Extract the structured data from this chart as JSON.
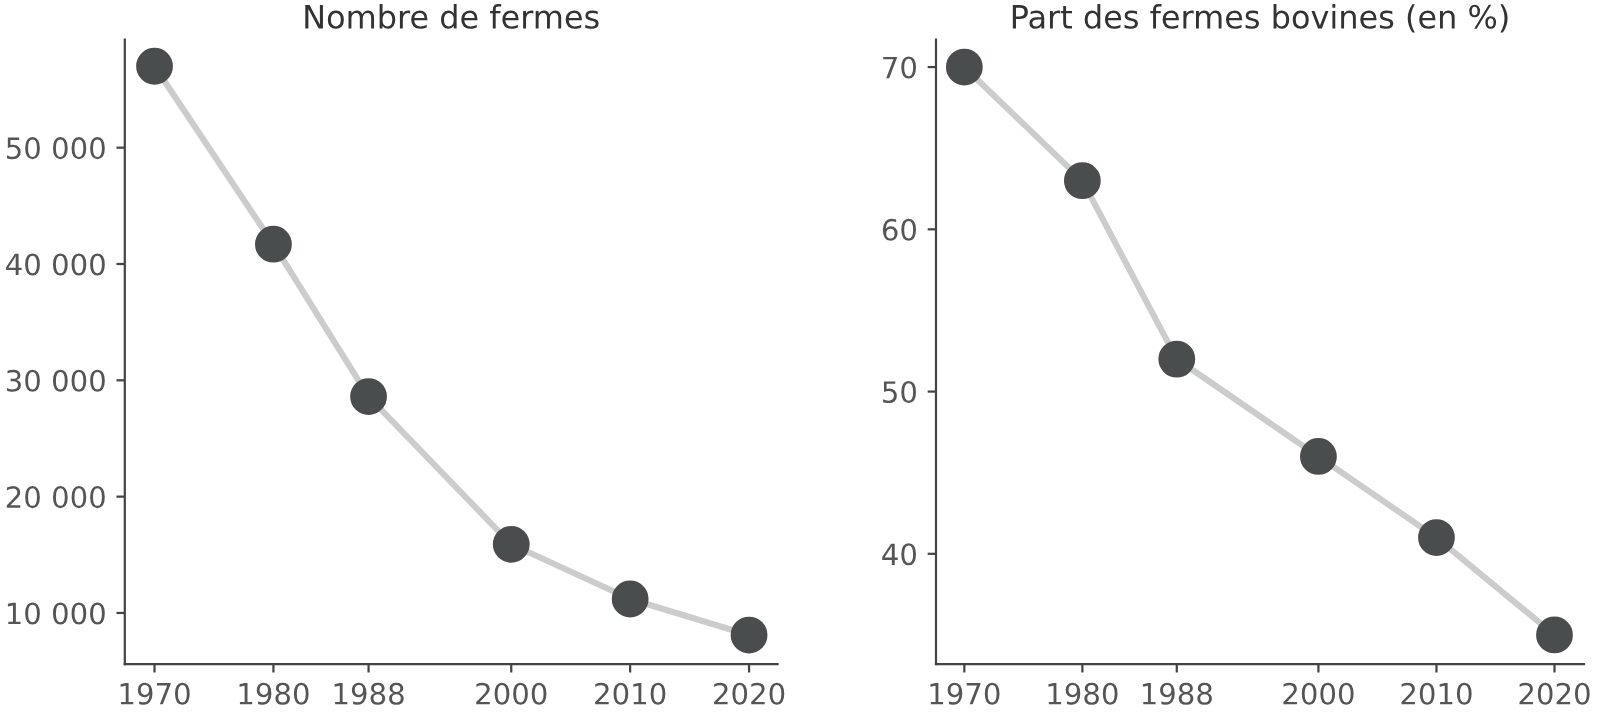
{
  "chart_data": [
    {
      "type": "line",
      "title": "Nombre de fermes",
      "x": [
        1970,
        1980,
        1988,
        2000,
        2010,
        2020
      ],
      "series": [
        {
          "color": "#cccccc",
          "colors": [
            "#4a4d4d",
            "#4a4d4d",
            "#4a4d4d",
            "#4a4d4d",
            "#4a4d4d",
            "#4a4d4d"
          ],
          "values": [
            57000,
            41700,
            28600,
            15900,
            11200,
            8100
          ]
        }
      ],
      "xlim": [
        1967.5,
        2022.4
      ],
      "xticks": [
        1970,
        1980,
        1988,
        2000,
        2010,
        2020
      ],
      "ylim": [
        5600,
        59300
      ],
      "yticks": [
        {
          "value": 10000,
          "label": "10 000"
        },
        {
          "value": 20000,
          "label": "20 000"
        },
        {
          "value": 30000,
          "label": "30 000"
        },
        {
          "value": 40000,
          "label": "40 000"
        },
        {
          "value": 50000,
          "label": "50 000"
        }
      ],
      "grid": false,
      "marker": "circle"
    },
    {
      "type": "line",
      "title": "Part des fermes bovines (en %)",
      "x": [
        1970,
        1980,
        1988,
        2000,
        2010,
        2020
      ],
      "series": [
        {
          "color": "#cccccc",
          "colors": [
            "#4a4d4d",
            "#4a4d4d",
            "#4a4d4d",
            "#4a4d4d",
            "#4a4d4d",
            "#4a4d4d"
          ],
          "values": [
            70,
            63,
            52,
            46,
            41,
            35
          ]
        }
      ],
      "xlim": [
        1967.6,
        2022.5
      ],
      "xticks": [
        1970,
        1980,
        1988,
        2000,
        2010,
        2020
      ],
      "ylim": [
        33.2,
        71.7
      ],
      "yticks": [
        40,
        50,
        60,
        70
      ],
      "grid": false,
      "marker": "circle"
    }
  ]
}
